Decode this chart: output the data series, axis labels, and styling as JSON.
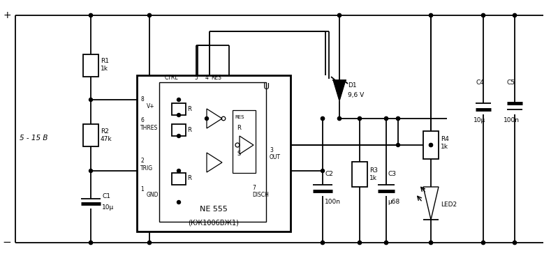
{
  "bg_color": "#ffffff",
  "line_color": "#000000",
  "lw": 1.3,
  "fig_w": 7.99,
  "fig_h": 3.7,
  "dpi": 100,
  "voltage_label": "5 - 15 В",
  "r1_label": "R1\n1k",
  "r2_label": "R2\n47k",
  "r3_label": "R3\n1k",
  "r4_label": "R4\n1k",
  "c1_label": "C1",
  "c1_val": "10μ",
  "c2_label": "C2",
  "c2_val": "100n",
  "c3_label": "C3",
  "c3_val": "μ68",
  "c4_label": "C4",
  "c4_val": "10μ",
  "c5_label": "C5",
  "c5_val": "100n",
  "d1_label": "D1",
  "d1_val": "9,6 V",
  "led2_label": "LED2",
  "ne555_label": "NE 555",
  "kr_label": "(КЖ1006ВЖ1)",
  "u_label": "U",
  "ctrl_label": "CTRL",
  "res_label": "RES",
  "thres_label": "THRES",
  "trig_label": "TRIG",
  "gnd_label": "GND",
  "out_label": "OUT",
  "disch_label": "DISCH",
  "vplus_label": "V+"
}
